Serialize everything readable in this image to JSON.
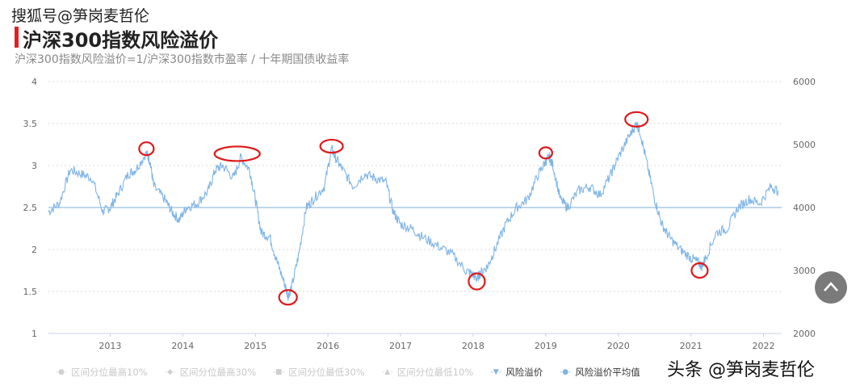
{
  "header": {
    "watermark": "搜狐号@笋岗麦哲伦",
    "title": "沪深300指数风险溢价",
    "subtitle": "沪深300指数风险溢价=1/沪深300指数市盈率 / 十年期国债收益率"
  },
  "footer": {
    "watermark": "头条 @笋岗麦哲伦"
  },
  "legend": [
    {
      "label": "区间分位最高10%",
      "icon": "circle-dash-icon",
      "active": false
    },
    {
      "label": "区间分位最高30%",
      "icon": "diamond-dash-icon",
      "active": false
    },
    {
      "label": "区间分位最低30%",
      "icon": "square-dash-icon",
      "active": false
    },
    {
      "label": "区间分位最低10%",
      "icon": "triangle-dash-icon",
      "active": false
    },
    {
      "label": "风险溢价",
      "icon": "triangle-down-line-icon",
      "active": true
    },
    {
      "label": "风险溢价平均值",
      "icon": "circle-line-icon",
      "active": true
    }
  ],
  "chart_data": {
    "type": "line",
    "title": "沪深300指数风险溢价",
    "subtitle": "沪深300指数风险溢价=1/沪深300指数市盈率 / 十年期国债收益率",
    "x_ticks": [
      "2013",
      "2014",
      "2015",
      "2016",
      "2017",
      "2018",
      "2019",
      "2020",
      "2021",
      "2022"
    ],
    "x_range": [
      2012.15,
      2022.25
    ],
    "y_left": {
      "ticks": [
        "1",
        "1.5",
        "2",
        "2.5",
        "3",
        "3.5",
        "4"
      ],
      "range": [
        1,
        4
      ]
    },
    "y_right": {
      "ticks": [
        "2000",
        "3000",
        "4000",
        "5000",
        "6000"
      ],
      "range": [
        2000,
        6000
      ]
    },
    "grid": true,
    "legend_position": "bottom",
    "colors": {
      "series": "#7eb4e6",
      "average": "#a9c8e6",
      "highlight": "#e01818"
    },
    "series": [
      {
        "name": "风险溢价",
        "x": [
          2012.15,
          2012.3,
          2012.45,
          2012.6,
          2012.75,
          2012.9,
          2013.0,
          2013.1,
          2013.25,
          2013.35,
          2013.5,
          2013.55,
          2013.6,
          2013.75,
          2013.85,
          2013.95,
          2014.05,
          2014.2,
          2014.35,
          2014.45,
          2014.55,
          2014.7,
          2014.8,
          2014.92,
          2015.0,
          2015.08,
          2015.2,
          2015.3,
          2015.4,
          2015.45,
          2015.5,
          2015.6,
          2015.7,
          2015.8,
          2015.95,
          2016.05,
          2016.1,
          2016.2,
          2016.35,
          2016.5,
          2016.65,
          2016.8,
          2016.9,
          2017.0,
          2017.15,
          2017.3,
          2017.5,
          2017.7,
          2017.9,
          2018.0,
          2018.05,
          2018.1,
          2018.2,
          2018.3,
          2018.45,
          2018.6,
          2018.75,
          2018.9,
          2019.0,
          2019.05,
          2019.1,
          2019.2,
          2019.3,
          2019.45,
          2019.6,
          2019.75,
          2019.9,
          2020.0,
          2020.15,
          2020.25,
          2020.3,
          2020.4,
          2020.5,
          2020.6,
          2020.7,
          2020.85,
          2021.0,
          2021.1,
          2021.15,
          2021.2,
          2021.35,
          2021.5,
          2021.65,
          2021.8,
          2021.95,
          2022.1,
          2022.2
        ],
        "y": [
          2.45,
          2.55,
          2.95,
          2.9,
          2.85,
          2.45,
          2.5,
          2.65,
          2.9,
          2.95,
          3.15,
          3.05,
          2.75,
          2.6,
          2.45,
          2.35,
          2.5,
          2.55,
          2.7,
          2.95,
          3.0,
          2.85,
          3.1,
          2.95,
          2.6,
          2.2,
          2.15,
          1.85,
          1.6,
          1.45,
          1.55,
          1.95,
          2.5,
          2.6,
          2.75,
          3.2,
          3.1,
          2.95,
          2.75,
          2.9,
          2.85,
          2.8,
          2.45,
          2.3,
          2.25,
          2.15,
          2.05,
          1.95,
          1.75,
          1.7,
          1.65,
          1.72,
          1.8,
          2.0,
          2.3,
          2.5,
          2.6,
          2.9,
          3.05,
          3.1,
          3.0,
          2.6,
          2.5,
          2.7,
          2.75,
          2.65,
          2.9,
          3.1,
          3.35,
          3.5,
          3.4,
          3.0,
          2.6,
          2.3,
          2.15,
          2.0,
          1.9,
          1.85,
          1.8,
          1.9,
          2.2,
          2.25,
          2.5,
          2.6,
          2.55,
          2.75,
          2.7
        ]
      },
      {
        "name": "风险溢价平均值",
        "x": [
          2012.15,
          2022.25
        ],
        "y": [
          2.5,
          2.5
        ]
      }
    ]
  }
}
